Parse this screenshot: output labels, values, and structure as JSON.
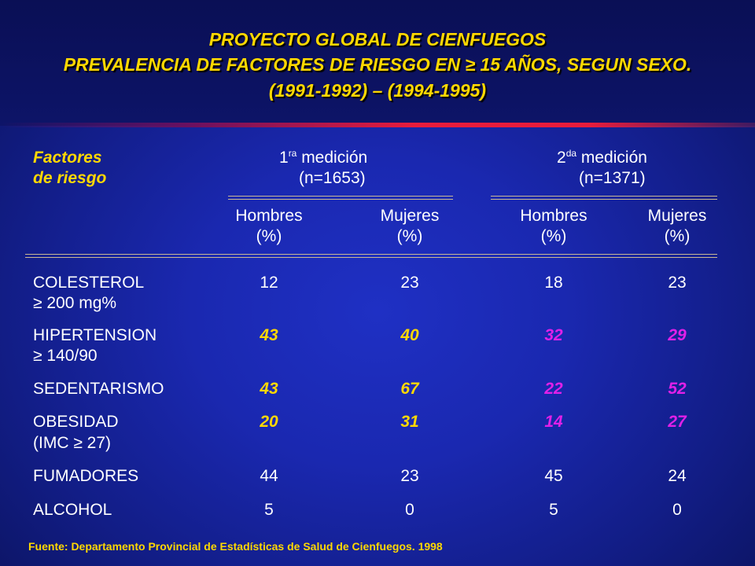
{
  "title": {
    "line1": "PROYECTO GLOBAL DE CIENFUEGOS",
    "line2": "PREVALENCIA DE FACTORES DE RIESGO EN ≥ 15 AÑOS, SEGUN SEXO.",
    "line3": "(1991-1992) – (1994-1995)"
  },
  "table": {
    "factor_header": [
      "Factores",
      "de riesgo"
    ],
    "measure1": {
      "prefix": "1",
      "sup": "ra",
      "suffix": " medición",
      "n": "(n=1653)"
    },
    "measure2": {
      "prefix": "2",
      "sup": "da",
      "suffix": " medición",
      "n": "(n=1371)"
    },
    "col_headers": [
      {
        "label": "Hombres",
        "unit": "(%)"
      },
      {
        "label": "Mujeres",
        "unit": "(%)"
      },
      {
        "label": "Hombres",
        "unit": "(%)"
      },
      {
        "label": "Mujeres",
        "unit": "(%)"
      }
    ],
    "rows": [
      {
        "name": "COLESTEROL",
        "sub": "≥ 200 mg%",
        "values": [
          "12",
          "23",
          "18",
          "23"
        ],
        "highlight": false
      },
      {
        "name": "HIPERTENSION",
        "sub": "≥ 140/90",
        "values": [
          "43",
          "40",
          "32",
          "29"
        ],
        "highlight": true
      },
      {
        "name": "SEDENTARISMO",
        "sub": "",
        "values": [
          "43",
          "67",
          "22",
          "52"
        ],
        "highlight": true
      },
      {
        "name": "OBESIDAD",
        "sub": "(IMC ≥ 27)",
        "values": [
          "20",
          "31",
          "14",
          "27"
        ],
        "highlight": true
      },
      {
        "name": "FUMADORES",
        "sub": "",
        "values": [
          "44",
          "23",
          "45",
          "24"
        ],
        "highlight": false
      },
      {
        "name": "ALCOHOL",
        "sub": "",
        "values": [
          "5",
          "0",
          "5",
          "0"
        ],
        "highlight": false
      }
    ]
  },
  "footer": "Fuente: Departamento Provincial de Estadísticas de Salud de Cienfuegos. 1998",
  "colors": {
    "background": "#1a28b0",
    "title": "#ffd800",
    "highlight_first": "#ffd800",
    "highlight_second": "#e020e8",
    "accent_line": "#e81c3c"
  }
}
